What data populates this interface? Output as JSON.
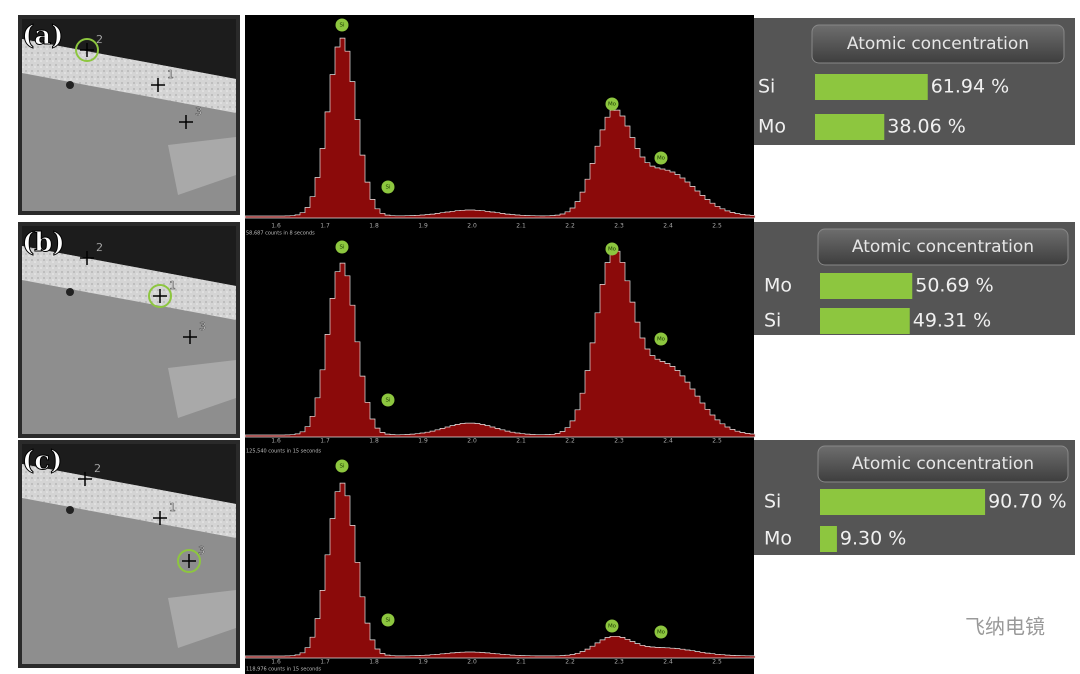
{
  "panels": [
    {
      "label": "(a)",
      "points": [
        "1",
        "2",
        "3"
      ],
      "peaks": [
        "Si",
        "Si",
        "Mo",
        "Mo"
      ],
      "axis_ticks": [
        "1.6",
        "1.7",
        "1.8",
        "1.9",
        "2.0",
        "2.1",
        "2.2",
        "2.3",
        "2.4",
        "2.5"
      ],
      "counts": "58,687 counts in 8 seconds",
      "concentration": {
        "title": "Atomic concentration",
        "elements": [
          "Si",
          "Mo"
        ],
        "values": [
          61.94,
          38.06
        ],
        "value_labels": [
          "61.94 %",
          "38.06 %"
        ]
      }
    },
    {
      "label": "(b)",
      "points": [
        "1",
        "2",
        "3"
      ],
      "peaks": [
        "Si",
        "Si",
        "Mo",
        "Mo"
      ],
      "axis_ticks": [
        "1.6",
        "1.7",
        "1.8",
        "1.9",
        "2.0",
        "2.1",
        "2.2",
        "2.3",
        "2.4",
        "2.5"
      ],
      "counts": "125,540 counts in 15 seconds",
      "concentration": {
        "title": "Atomic concentration",
        "elements": [
          "Mo",
          "Si"
        ],
        "values": [
          50.69,
          49.31
        ],
        "value_labels": [
          "50.69 %",
          "49.31 %"
        ]
      }
    },
    {
      "label": "(c)",
      "points": [
        "1",
        "2",
        "3"
      ],
      "peaks": [
        "Si",
        "Si",
        "Mo",
        "Mo"
      ],
      "axis_ticks": [
        "1.6",
        "1.7",
        "1.8",
        "1.9",
        "2.0",
        "2.1",
        "2.2",
        "2.3",
        "2.4",
        "2.5"
      ],
      "counts": "118,976 counts in 15 seconds",
      "concentration": {
        "title": "Atomic concentration",
        "elements": [
          "Si",
          "Mo"
        ],
        "values": [
          90.7,
          9.3
        ],
        "value_labels": [
          "90.70 %",
          "9.30 %"
        ]
      }
    }
  ],
  "watermark": "飞纳电镜"
}
